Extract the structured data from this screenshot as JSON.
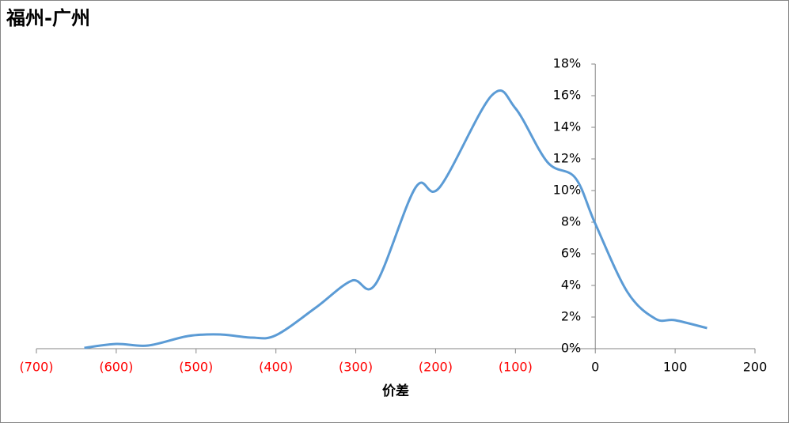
{
  "chart_data": {
    "type": "line",
    "title": "福州-广州",
    "x_label": "价差",
    "series": [
      {
        "name": "福州-广州",
        "color": "#5b9bd5",
        "x": [
          -640,
          -600,
          -560,
          -510,
          -470,
          -430,
          -400,
          -350,
          -305,
          -275,
          -225,
          -195,
          -130,
          -100,
          -60,
          -25,
          0,
          40,
          75,
          100,
          140
        ],
        "values": [
          0.05,
          0.3,
          0.2,
          0.8,
          0.9,
          0.7,
          0.85,
          2.6,
          4.3,
          4.1,
          10.2,
          10.2,
          16.0,
          15.2,
          11.8,
          10.8,
          7.9,
          3.6,
          1.9,
          1.8,
          1.3
        ]
      }
    ],
    "xlim": [
      -700,
      200
    ],
    "xticks": [
      {
        "value": -700,
        "label": "(700)"
      },
      {
        "value": -600,
        "label": "(600)"
      },
      {
        "value": -500,
        "label": "(500)"
      },
      {
        "value": -400,
        "label": "(400)"
      },
      {
        "value": -300,
        "label": "(300)"
      },
      {
        "value": -200,
        "label": "(200)"
      },
      {
        "value": -100,
        "label": "(100)"
      },
      0,
      100,
      200
    ],
    "ylim": [
      0,
      18
    ],
    "yticks": [
      {
        "value": 0,
        "label": "0%"
      },
      {
        "value": 2,
        "label": "2%"
      },
      {
        "value": 4,
        "label": "4%"
      },
      {
        "value": 6,
        "label": "6%"
      },
      {
        "value": 8,
        "label": "8%"
      },
      {
        "value": 10,
        "label": "10%"
      },
      {
        "value": 12,
        "label": "12%"
      },
      {
        "value": 14,
        "label": "14%"
      },
      {
        "value": 16,
        "label": "16%"
      },
      {
        "value": 18,
        "label": "18%"
      }
    ],
    "negative_label_color": "#ff0000",
    "smooth": true,
    "grid": false
  }
}
